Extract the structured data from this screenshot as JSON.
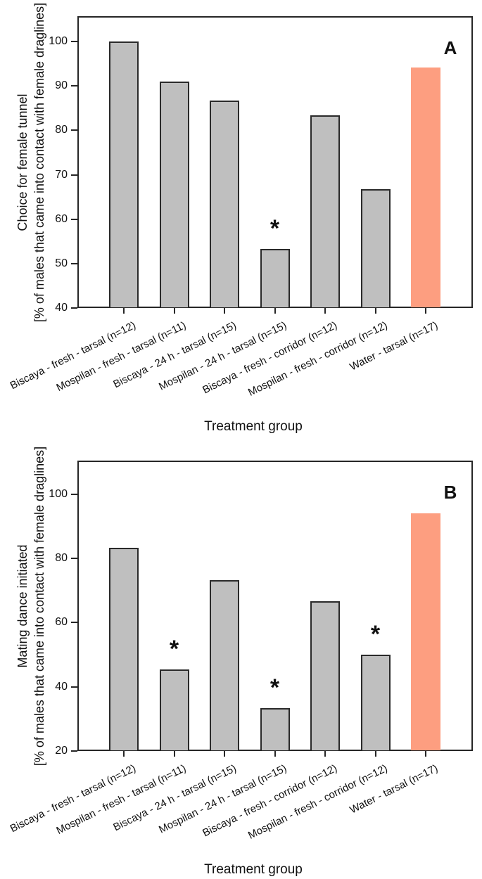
{
  "style": {
    "background": "#ffffff",
    "bar_fill": "#bfbfbf",
    "bar_border": "#2a2a2a",
    "control_bar_fill": "#fd9e80",
    "axis_color": "#262626",
    "text_color": "#111111",
    "significance_symbol": "*"
  },
  "chart_data": [
    {
      "type": "bar",
      "panel_label": "A",
      "title": "",
      "ylabel_title": "Choice for female tunnel",
      "ylabel_unit": "[% of males that came into contact with female draglines]",
      "xlabel": "Treatment group",
      "categories": [
        "Biscaya - fresh - tarsal (n=12)",
        "Mospilan - fresh - tarsal (n=11)",
        "Biscaya - 24 h - tarsal (n=15)",
        "Mospilan - 24 h - tarsal (n=15)",
        "Biscaya - fresh - corridor (n=12)",
        "Mospilan - fresh - corridor (n=12)",
        "Water - tarsal (n=17)"
      ],
      "values": [
        100,
        90.9,
        86.7,
        53.3,
        83.3,
        66.7,
        94.1
      ],
      "significance_marks": [
        false,
        false,
        false,
        true,
        false,
        false,
        false
      ],
      "bar_roles": [
        "treatment",
        "treatment",
        "treatment",
        "treatment",
        "treatment",
        "treatment",
        "control"
      ],
      "ylim": [
        40,
        105.7
      ],
      "yticks": [
        40,
        50,
        60,
        70,
        80,
        90,
        100
      ],
      "grid": false,
      "legend": null
    },
    {
      "type": "bar",
      "panel_label": "B",
      "title": "",
      "ylabel_title": "Mating dance initiated",
      "ylabel_unit": "[% of males that came into contact with female draglines]",
      "xlabel": "Treatment group",
      "categories": [
        "Biscaya - fresh - tarsal (n=12)",
        "Mospilan - fresh - tarsal (n=11)",
        "Biscaya - 24 h - tarsal (n=15)",
        "Mospilan - 24 h - tarsal (n=15)",
        "Biscaya - fresh - corridor (n=12)",
        "Mospilan - fresh - corridor (n=12)",
        "Water - tarsal (n=17)"
      ],
      "values": [
        83.3,
        45.5,
        73.3,
        33.3,
        66.7,
        50,
        94.1
      ],
      "significance_marks": [
        false,
        true,
        false,
        true,
        false,
        true,
        false
      ],
      "bar_roles": [
        "treatment",
        "treatment",
        "treatment",
        "treatment",
        "treatment",
        "treatment",
        "control"
      ],
      "ylim": [
        20,
        110.5
      ],
      "yticks": [
        20,
        40,
        60,
        80,
        100
      ],
      "grid": false,
      "legend": null
    }
  ]
}
